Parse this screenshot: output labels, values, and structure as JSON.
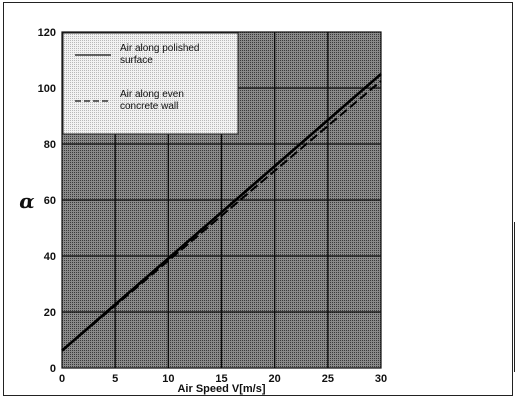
{
  "chart_data": {
    "type": "line",
    "xlabel": "Air Speed V[m/s]",
    "ylabel": "α",
    "xlim": [
      0,
      30
    ],
    "ylim": [
      0,
      120
    ],
    "x_ticks": [
      "0",
      "5",
      "10",
      "15",
      "20",
      "25",
      "30"
    ],
    "y_ticks": [
      "0",
      "20",
      "40",
      "60",
      "80",
      "100",
      "120"
    ],
    "grid": true,
    "legend_position": "top-left",
    "series": [
      {
        "name": "Air along polished surface",
        "x": [
          0,
          30
        ],
        "y": [
          6.2,
          105
        ],
        "style": "solid"
      },
      {
        "name": "Air along even concrete wall",
        "x": [
          0,
          30
        ],
        "y": [
          6.2,
          102.5
        ],
        "style": "dashed"
      }
    ]
  },
  "legend": {
    "items": [
      {
        "line1": "Air along polished",
        "line2": "surface"
      },
      {
        "line1": "Air along even",
        "line2": "concrete wall"
      }
    ]
  }
}
